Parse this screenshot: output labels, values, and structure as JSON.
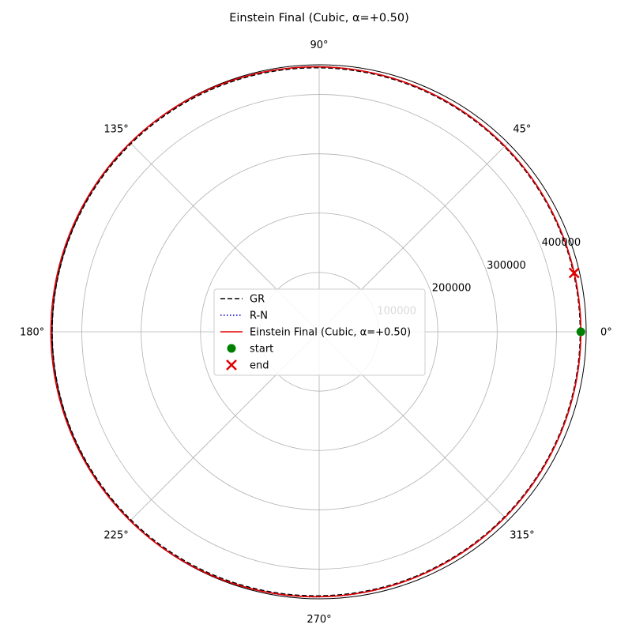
{
  "chart_data": {
    "type": "line",
    "projection": "polar",
    "title": "Einstein Final (Cubic, α=+0.50)",
    "rmax": 450000,
    "radial_ticks": [
      100000,
      200000,
      300000,
      400000
    ],
    "radial_tick_labels": [
      "100000",
      "200000",
      "300000",
      "400000"
    ],
    "angular_ticks_deg": [
      0,
      45,
      90,
      135,
      180,
      225,
      270,
      315
    ],
    "angular_tick_labels": [
      "0°",
      "45°",
      "90°",
      "135°",
      "180°",
      "225°",
      "270°",
      "315°"
    ],
    "grid": true,
    "legend_position": "center",
    "series": [
      {
        "name": "GR",
        "style": "dashed",
        "color": "#000000",
        "r_periapsis": 440000,
        "r_apoapsis": 450000,
        "theta_start_deg": 0,
        "theta_end_deg": 360
      },
      {
        "name": "R-N",
        "style": "dotted",
        "color": "#0000cc",
        "r_periapsis": 441000,
        "r_apoapsis": 452000,
        "theta_start_deg": 0,
        "theta_end_deg": 360
      },
      {
        "name": "Einstein Final (Cubic, α=+0.50)",
        "style": "solid",
        "color": "#e00000",
        "r_periapsis": 441000,
        "r_apoapsis": 452000,
        "theta_start_deg": 0,
        "theta_end_deg": 373
      }
    ],
    "markers": [
      {
        "name": "start",
        "symbol": "circle",
        "color": "#008000",
        "r": 441000,
        "theta_deg": 0
      },
      {
        "name": "end",
        "symbol": "x",
        "color": "#e00000",
        "r": 441000,
        "theta_deg": 13
      }
    ]
  }
}
